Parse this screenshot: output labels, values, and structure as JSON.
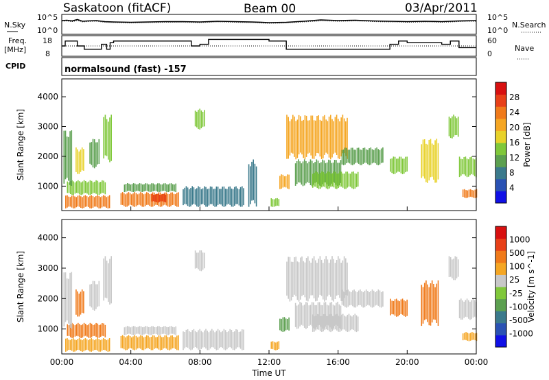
{
  "header": {
    "station": "Saskatoon (fitACF)",
    "beam": "Beam 00",
    "date": "03/Apr/2011"
  },
  "left_labels": {
    "nsky": "N.Sky",
    "freq_line1": "Freq.",
    "freq_line2": "[MHz]",
    "cpid": "CPID"
  },
  "right_labels": {
    "nsearch": "N.Search",
    "nave": "Nave"
  },
  "cpid_text": "normalsound (fast) -157",
  "chart_data": [
    {
      "type": "line",
      "name": "noise",
      "ylabel": "",
      "y_scale": "log",
      "ylim_exponents": [
        0,
        5
      ],
      "tick_labels": [
        "10^0",
        "10^5"
      ],
      "right_tick_labels": [
        "10^0",
        "10^5"
      ],
      "x_hours": [
        0,
        0.3,
        0.6,
        0.9,
        1.2,
        1.5,
        2,
        2.5,
        3,
        4,
        5,
        6,
        7,
        8,
        9,
        10,
        11,
        12,
        13,
        14,
        15,
        16,
        17,
        18,
        19,
        20,
        21,
        22,
        23,
        24
      ],
      "nsky_exponent": [
        3.6,
        3.7,
        3.5,
        3.9,
        3.4,
        3.5,
        3.6,
        3.3,
        3.2,
        3.1,
        3.2,
        3.3,
        3.3,
        3.2,
        3.4,
        3.3,
        3.2,
        3.0,
        3.1,
        3.4,
        3.8,
        3.6,
        3.7,
        3.5,
        3.4,
        3.3,
        3.4,
        3.3,
        3.5,
        3.6
      ],
      "nsearch_exponent": [
        3.4,
        3.5,
        3.3,
        3.6,
        3.2,
        3.3,
        3.4,
        3.1,
        3.0,
        2.9,
        3.0,
        3.1,
        3.1,
        3.0,
        3.2,
        3.1,
        3.0,
        2.8,
        2.9,
        3.2,
        3.5,
        3.4,
        3.5,
        3.3,
        3.2,
        3.1,
        3.2,
        3.1,
        3.3,
        3.4
      ]
    },
    {
      "type": "line",
      "name": "frequency_nave",
      "left_ticks": [
        8,
        18
      ],
      "right_ticks": [
        0,
        60
      ],
      "freq_steps": [
        [
          0,
          13
        ],
        [
          0.2,
          16
        ],
        [
          0.9,
          13
        ],
        [
          1.3,
          11
        ],
        [
          2.3,
          14
        ],
        [
          2.6,
          11
        ],
        [
          2.8,
          15
        ],
        [
          3,
          16
        ],
        [
          7.5,
          13
        ],
        [
          8,
          14
        ],
        [
          8.5,
          17
        ],
        [
          9,
          17
        ],
        [
          12,
          16
        ],
        [
          13,
          11
        ],
        [
          18,
          11
        ],
        [
          19,
          14
        ],
        [
          19.5,
          16
        ],
        [
          20,
          15
        ],
        [
          22,
          14
        ],
        [
          22.5,
          16
        ],
        [
          23,
          12
        ],
        [
          24,
          12
        ]
      ],
      "nave_level": 13
    },
    {
      "type": "heatmap",
      "name": "power",
      "ylabel": "Slant Range [km]",
      "ylim": [
        180,
        4600
      ],
      "yticks": [
        1000,
        2000,
        3000,
        4000
      ],
      "xlim_hours": [
        0,
        24
      ],
      "colorbar_label": "Power [dB]",
      "colorbar_ticks": [
        "4",
        "8",
        "12",
        "16",
        "20",
        "24",
        "28"
      ],
      "colors": [
        "#1010e6",
        "#2a52b4",
        "#3b7a8c",
        "#5ca050",
        "#80c83a",
        "#e8d22a",
        "#f5a623",
        "#f07a1a",
        "#e84018",
        "#d81010"
      ],
      "vmin": 0,
      "vmax": 30,
      "patches": [
        {
          "h0": 0.2,
          "h1": 2.8,
          "r0": 250,
          "r1": 700,
          "v": 24
        },
        {
          "h0": 0.3,
          "h1": 2.5,
          "r0": 700,
          "r1": 1200,
          "v": 12
        },
        {
          "h0": 0.1,
          "h1": 0.6,
          "r0": 1000,
          "r1": 2900,
          "v": 9
        },
        {
          "h0": 0.8,
          "h1": 1.3,
          "r0": 1400,
          "r1": 2300,
          "v": 15
        },
        {
          "h0": 1.6,
          "h1": 2.2,
          "r0": 1600,
          "r1": 2600,
          "v": 10
        },
        {
          "h0": 2.4,
          "h1": 2.9,
          "r0": 1800,
          "r1": 3400,
          "v": 14
        },
        {
          "h0": 3.4,
          "h1": 6.8,
          "r0": 300,
          "r1": 800,
          "v": 22
        },
        {
          "h0": 3.6,
          "h1": 6.6,
          "r0": 800,
          "r1": 1100,
          "v": 11
        },
        {
          "h0": 5.2,
          "h1": 6.0,
          "r0": 450,
          "r1": 750,
          "v": 28
        },
        {
          "h0": 7.7,
          "h1": 8.3,
          "r0": 2900,
          "r1": 3600,
          "v": 14
        },
        {
          "h0": 7.0,
          "h1": 10.5,
          "r0": 300,
          "r1": 1000,
          "v": 6
        },
        {
          "h0": 10.8,
          "h1": 11.3,
          "r0": 300,
          "r1": 1900,
          "v": 5
        },
        {
          "h0": 12.1,
          "h1": 12.6,
          "r0": 300,
          "r1": 600,
          "v": 14
        },
        {
          "h0": 12.6,
          "h1": 13.2,
          "r0": 900,
          "r1": 1400,
          "v": 20
        },
        {
          "h0": 13.0,
          "h1": 16.5,
          "r0": 1900,
          "r1": 3400,
          "v": 20
        },
        {
          "h0": 13.5,
          "h1": 16.2,
          "r0": 1000,
          "r1": 1900,
          "v": 10
        },
        {
          "h0": 14.5,
          "h1": 17.2,
          "r0": 900,
          "r1": 1500,
          "v": 13
        },
        {
          "h0": 16.2,
          "h1": 18.6,
          "r0": 1700,
          "r1": 2300,
          "v": 9
        },
        {
          "h0": 19.0,
          "h1": 20.0,
          "r0": 1400,
          "r1": 2000,
          "v": 14
        },
        {
          "h0": 20.8,
          "h1": 21.8,
          "r0": 1100,
          "r1": 2600,
          "v": 16
        },
        {
          "h0": 22.4,
          "h1": 23.0,
          "r0": 2600,
          "r1": 3400,
          "v": 12
        },
        {
          "h0": 23.0,
          "h1": 24.0,
          "r0": 1300,
          "r1": 2000,
          "v": 14
        },
        {
          "h0": 23.2,
          "h1": 24.0,
          "r0": 600,
          "r1": 900,
          "v": 24
        }
      ]
    },
    {
      "type": "heatmap",
      "name": "velocity",
      "ylabel": "Slant Range [km]",
      "ylim": [
        180,
        4600
      ],
      "yticks": [
        1000,
        2000,
        3000,
        4000
      ],
      "xlim_hours": [
        0,
        24
      ],
      "xticks": [
        "00:00",
        "04:00",
        "08:00",
        "12:00",
        "16:00",
        "20:00",
        "00:00"
      ],
      "xlabel": "Time UT",
      "colorbar_label": "Velocity [m s^-1]",
      "colorbar_ticks": [
        "1000",
        "500",
        "100",
        "25",
        "-25",
        "-100",
        "-500",
        "-1000"
      ],
      "colors": [
        "#1010e6",
        "#2a52b4",
        "#3b7a8c",
        "#5ca050",
        "#80c83a",
        "#c8c8c8",
        "#f5a623",
        "#f07a1a",
        "#e84018",
        "#d81010"
      ],
      "patches": [
        {
          "h0": 0.2,
          "h1": 2.8,
          "r0": 250,
          "r1": 700,
          "c": 6
        },
        {
          "h0": 0.3,
          "h1": 2.5,
          "r0": 700,
          "r1": 1200,
          "c": 7
        },
        {
          "h0": 0.1,
          "h1": 0.6,
          "r0": 1000,
          "r1": 2900,
          "c": 5
        },
        {
          "h0": 0.8,
          "h1": 1.3,
          "r0": 1400,
          "r1": 2300,
          "c": 7
        },
        {
          "h0": 1.6,
          "h1": 2.2,
          "r0": 1600,
          "r1": 2600,
          "c": 5
        },
        {
          "h0": 2.4,
          "h1": 2.9,
          "r0": 1800,
          "r1": 3400,
          "c": 5
        },
        {
          "h0": 3.4,
          "h1": 6.8,
          "r0": 300,
          "r1": 800,
          "c": 6
        },
        {
          "h0": 3.6,
          "h1": 6.6,
          "r0": 800,
          "r1": 1100,
          "c": 5
        },
        {
          "h0": 7.7,
          "h1": 8.3,
          "r0": 2900,
          "r1": 3600,
          "c": 5
        },
        {
          "h0": 7.0,
          "h1": 10.5,
          "r0": 300,
          "r1": 1000,
          "c": 5
        },
        {
          "h0": 12.1,
          "h1": 12.6,
          "r0": 300,
          "r1": 600,
          "c": 6
        },
        {
          "h0": 12.6,
          "h1": 13.2,
          "r0": 900,
          "r1": 1400,
          "c": 3
        },
        {
          "h0": 13.0,
          "h1": 16.5,
          "r0": 1900,
          "r1": 3400,
          "c": 5
        },
        {
          "h0": 13.5,
          "h1": 16.2,
          "r0": 1000,
          "r1": 1900,
          "c": 5
        },
        {
          "h0": 14.5,
          "h1": 17.2,
          "r0": 900,
          "r1": 1500,
          "c": 5
        },
        {
          "h0": 16.2,
          "h1": 18.6,
          "r0": 1700,
          "r1": 2300,
          "c": 5
        },
        {
          "h0": 19.0,
          "h1": 20.0,
          "r0": 1400,
          "r1": 2000,
          "c": 7
        },
        {
          "h0": 20.8,
          "h1": 21.8,
          "r0": 1100,
          "r1": 2600,
          "c": 7
        },
        {
          "h0": 22.4,
          "h1": 23.0,
          "r0": 2600,
          "r1": 3400,
          "c": 5
        },
        {
          "h0": 23.0,
          "h1": 24.0,
          "r0": 1300,
          "r1": 2000,
          "c": 5
        },
        {
          "h0": 23.2,
          "h1": 24.0,
          "r0": 600,
          "r1": 900,
          "c": 6
        }
      ]
    }
  ]
}
